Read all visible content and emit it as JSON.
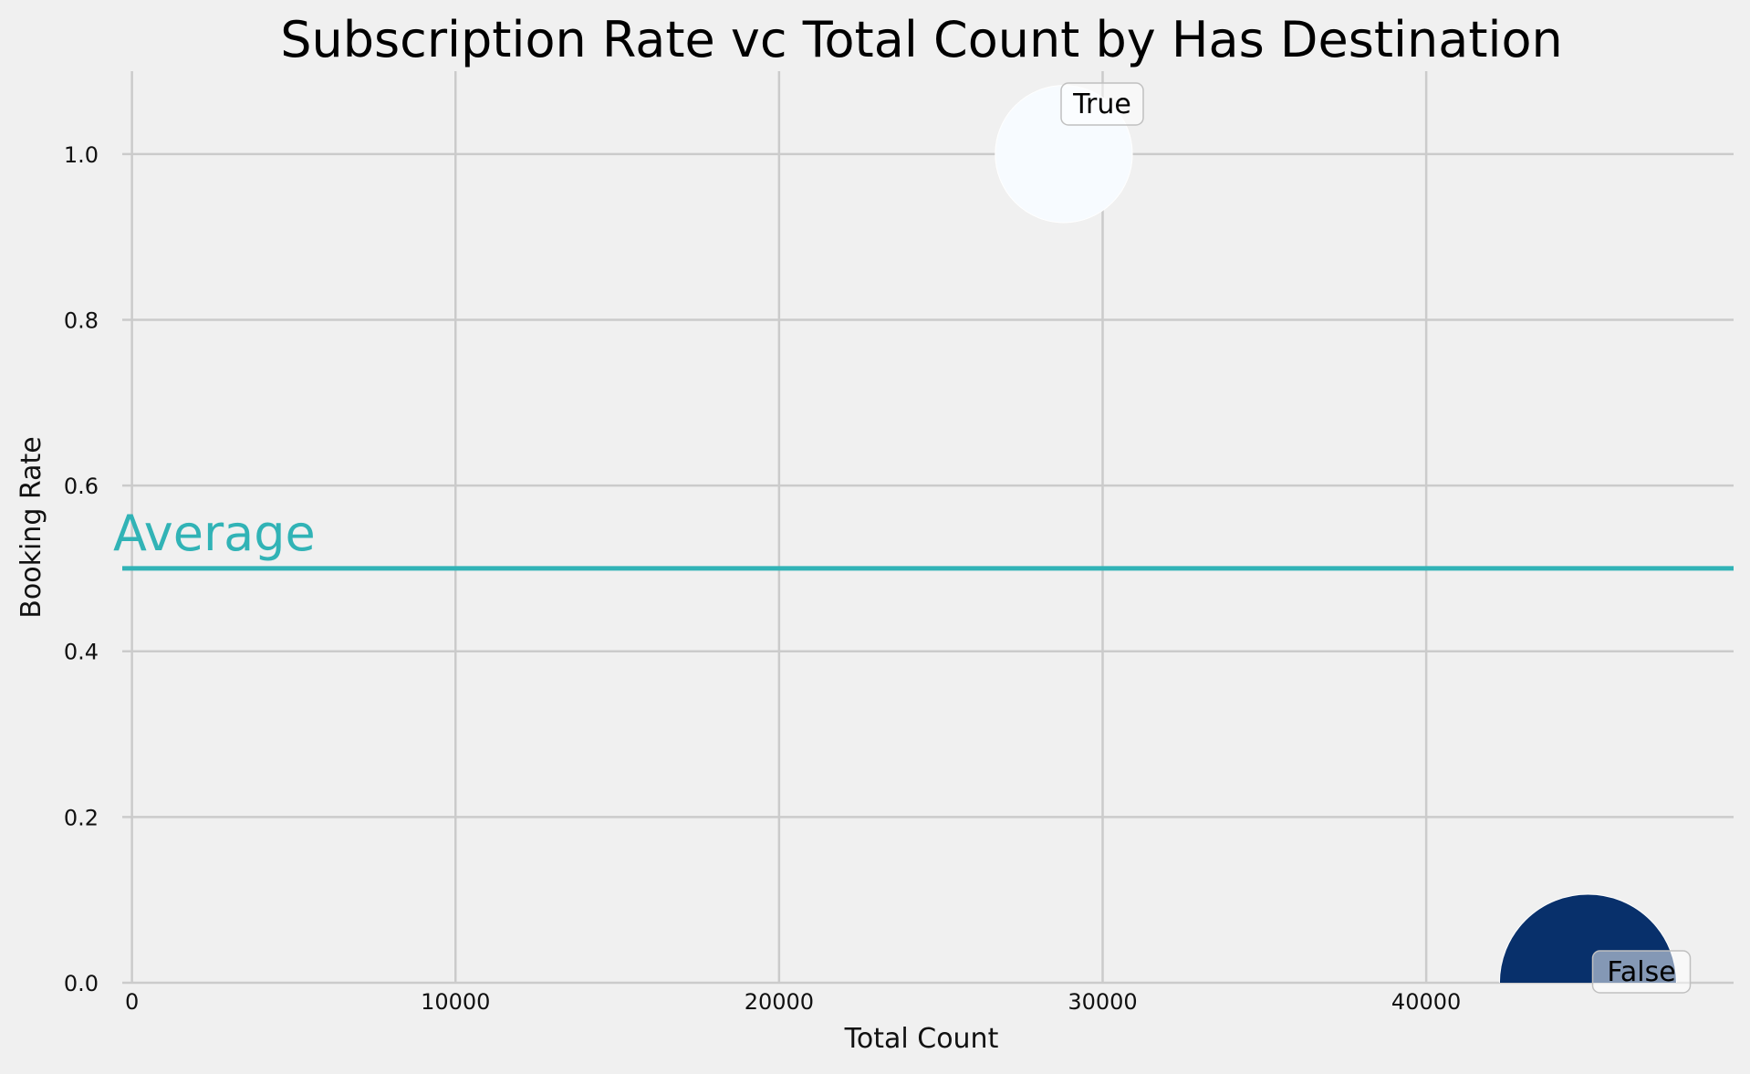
{
  "chart_data": {
    "type": "scatter",
    "title": "Subscription Rate vc Total Count by Has Destination",
    "xlabel": "Total Count",
    "ylabel": "Booking Rate",
    "xlim": [
      -300,
      49500
    ],
    "ylim": [
      0,
      1.1
    ],
    "xticks": [
      0,
      10000,
      20000,
      30000,
      40000
    ],
    "yticks": [
      0.0,
      0.2,
      0.4,
      0.6,
      0.8,
      1.0
    ],
    "xtick_labels": [
      "0",
      "10000",
      "20000",
      "30000",
      "40000"
    ],
    "ytick_labels": [
      "0.0",
      "0.2",
      "0.4",
      "0.6",
      "0.8",
      "1.0"
    ],
    "grid": true,
    "points": [
      {
        "label": "True",
        "x": 28800,
        "y": 1.0,
        "color": "#f7fbff",
        "size_rel": 0.6
      },
      {
        "label": "False",
        "x": 45000,
        "y": 0.0,
        "color": "#08306b",
        "size_rel": 1.0
      }
    ],
    "average_line": {
      "y": 0.5,
      "label": "Average",
      "color": "#31b3b6"
    }
  }
}
